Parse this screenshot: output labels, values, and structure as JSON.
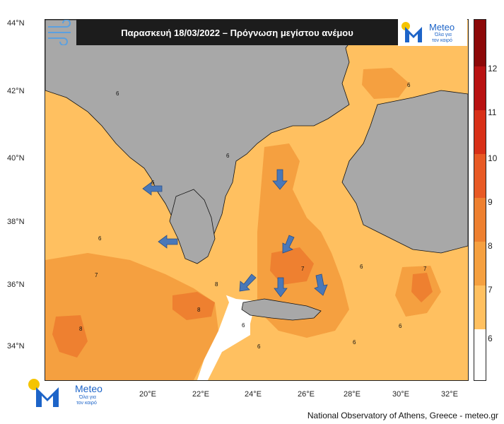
{
  "title": "Παρασκευή 18/03/2022 – Πρόγνωση μεγίστου ανέμου",
  "logo": {
    "brand": "Meteo",
    "tagline_1": "Όλα για",
    "tagline_2": "τον καιρό"
  },
  "footer": "National Observatory of Athens, Greece - meteo.gr",
  "lat_labels": [
    "44°N",
    "42°N",
    "40°N",
    "38°N",
    "36°N",
    "34°N"
  ],
  "lon_labels": [
    "20°E",
    "22°E",
    "24°E",
    "26°E",
    "28°E",
    "30°E",
    "32°E"
  ],
  "colorbar": {
    "labels": [
      "12",
      "11",
      "10",
      "9",
      "8",
      "7",
      "6"
    ],
    "colors": [
      "#ffffff",
      "#ffc060",
      "#f5a040",
      "#ee8030",
      "#e85a25",
      "#d83018",
      "#b81212",
      "#8c0808"
    ]
  },
  "contour_labels": [
    "6",
    "7",
    "8"
  ],
  "colors": {
    "land": "#a8a8a8",
    "level6": "#ffc060",
    "level7": "#f5a040",
    "level8": "#ee8030",
    "arrow": "#4a78b8"
  }
}
